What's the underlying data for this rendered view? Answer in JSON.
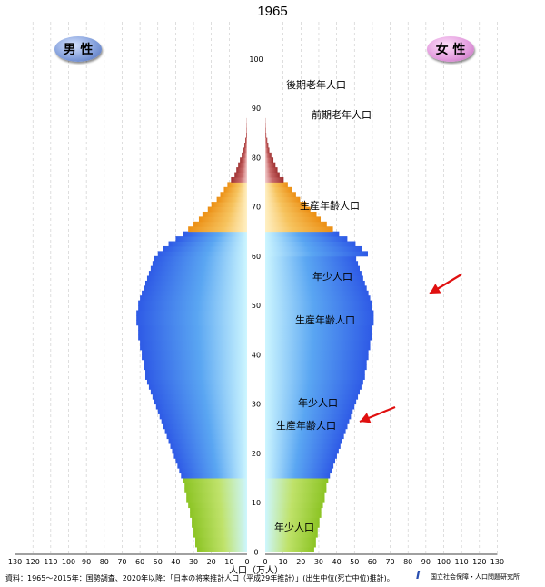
{
  "chart_data": {
    "type": "bar",
    "title": "1965",
    "xlabel": "人口（万人）",
    "ylabel": "",
    "orientation": "horizontal-population-pyramid",
    "xlim": [
      0,
      130
    ],
    "ylim": [
      0,
      105
    ],
    "x_ticks": [
      130,
      120,
      110,
      100,
      90,
      80,
      70,
      60,
      50,
      40,
      30,
      20,
      10,
      0
    ],
    "age_ticks": [
      0,
      10,
      20,
      30,
      40,
      50,
      60,
      70,
      80,
      90,
      100
    ],
    "legend": {
      "male": "男 性",
      "female": "女 性"
    },
    "age_groups": [
      {
        "label": "後期老年人口",
        "range": [
          75,
          105
        ],
        "color": "#b04848"
      },
      {
        "label": "前期老年人口",
        "range": [
          65,
          74
        ],
        "color": "#f0a030"
      },
      {
        "label": "生産年齢人口",
        "range": [
          15,
          64
        ],
        "color": "#3060e0"
      },
      {
        "label": "年少人口",
        "range": [
          0,
          14
        ],
        "color": "#98c830"
      }
    ],
    "segment_labels": [
      {
        "text": "後期老年人口",
        "age": 85
      },
      {
        "text": "前期老年人口",
        "age": 70
      },
      {
        "text": "生産年齢人口",
        "age": 30
      },
      {
        "text": "年少人口",
        "age": 9
      },
      {
        "text": "生産年齢人口",
        "age": 44
      },
      {
        "text": "年少人口",
        "age": 10
      },
      {
        "text": "生産年齢人口",
        "age": 8
      },
      {
        "text": "年少人口",
        "age": 9
      }
    ],
    "series": [
      {
        "name": "男 性",
        "ages": [
          0,
          1,
          2,
          3,
          4,
          5,
          6,
          7,
          8,
          9,
          10,
          11,
          12,
          13,
          14,
          15,
          16,
          17,
          18,
          19,
          20,
          21,
          22,
          23,
          24,
          25,
          26,
          27,
          28,
          29,
          30,
          31,
          32,
          33,
          34,
          35,
          36,
          37,
          38,
          39,
          40,
          41,
          42,
          43,
          44,
          45,
          46,
          47,
          48,
          49,
          50,
          51,
          52,
          53,
          54,
          55,
          56,
          57,
          58,
          59,
          60,
          61,
          62,
          63,
          64,
          65,
          66,
          67,
          68,
          69,
          70,
          71,
          72,
          73,
          74,
          75,
          76,
          77,
          78,
          79,
          80,
          81,
          82,
          83,
          84,
          85,
          86,
          87,
          88,
          89,
          90,
          91,
          92,
          93,
          94,
          95,
          96,
          97,
          98,
          99,
          100
        ],
        "values": [
          28,
          29,
          29,
          30,
          30,
          31,
          31,
          32,
          32,
          33,
          34,
          34,
          35,
          35,
          36,
          37,
          38,
          39,
          40,
          41,
          42,
          43,
          44,
          45,
          46,
          47,
          48,
          49,
          50,
          51,
          52,
          53,
          54,
          55,
          56,
          57,
          57,
          58,
          58,
          59,
          59,
          60,
          60,
          61,
          61,
          61,
          62,
          62,
          62,
          61,
          61,
          60,
          59,
          58,
          57,
          56,
          55,
          54,
          53,
          52,
          50,
          47,
          44,
          40,
          36,
          33,
          30,
          27,
          25,
          22,
          20,
          17,
          15,
          13,
          11,
          9,
          7,
          6,
          5,
          4,
          3,
          2,
          1.5,
          1,
          0.5,
          0.3,
          0.2,
          0.1,
          0,
          0,
          0,
          0,
          0,
          0,
          0,
          0,
          0,
          0,
          0,
          0,
          0
        ]
      }
    ]
  },
  "source_note": "資料：1965～2015年：国勢調査、2020年以降：「日本の将来推計人口（平成29年推計）」(出生中位(死亡中位)推計)。",
  "institute": "国立社会保障・人口問題研究所"
}
